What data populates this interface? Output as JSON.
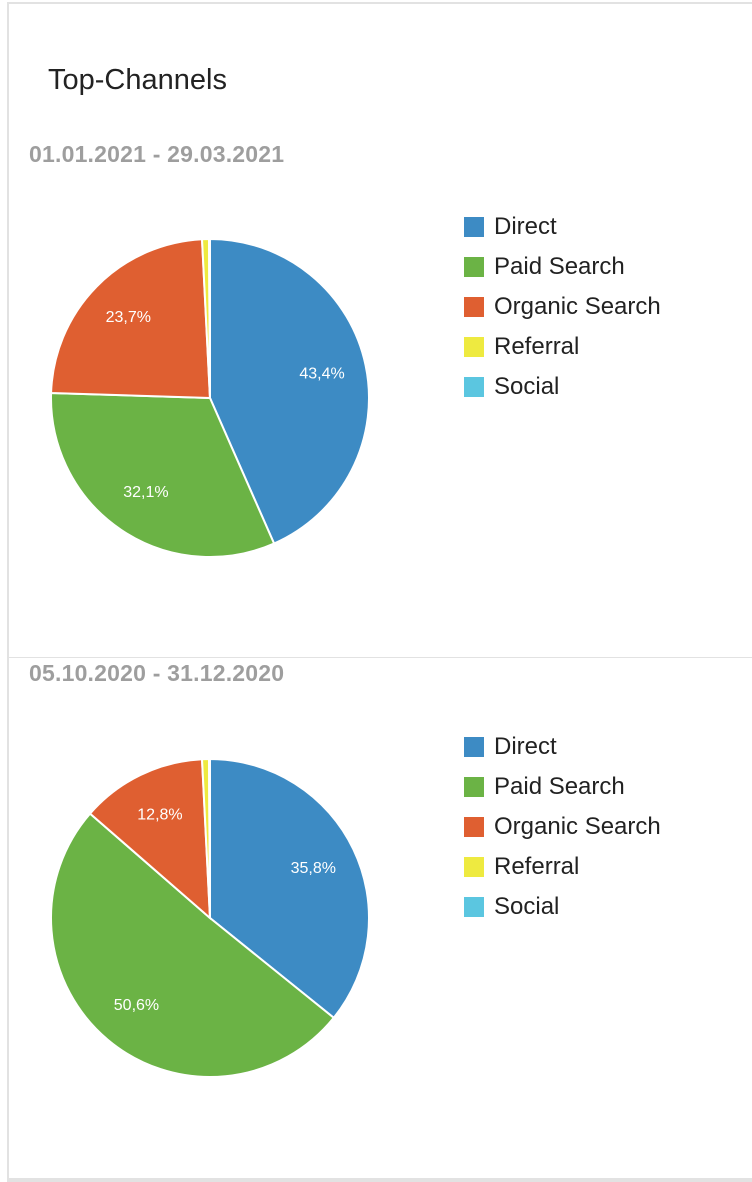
{
  "widget": {
    "title": "Top-Channels"
  },
  "chart_data": [
    {
      "type": "pie",
      "subtitle": "01.01.2021 - 29.03.2021",
      "categories": [
        "Direct",
        "Paid Search",
        "Organic Search",
        "Referral",
        "Social"
      ],
      "values": [
        43.4,
        32.1,
        23.7,
        0.7,
        0.1
      ],
      "data_labels": [
        "43,4%",
        "32,1%",
        "23,7%",
        "",
        ""
      ],
      "colors": [
        "#3d8bc4",
        "#6bb345",
        "#df5f31",
        "#eeea40",
        "#5bc6e0"
      ],
      "legend_position": "right"
    },
    {
      "type": "pie",
      "subtitle": "05.10.2020 - 31.12.2020",
      "categories": [
        "Direct",
        "Paid Search",
        "Organic Search",
        "Referral",
        "Social"
      ],
      "values": [
        35.8,
        50.6,
        12.8,
        0.7,
        0.1
      ],
      "data_labels": [
        "35,8%",
        "50,6%",
        "12,8%",
        "",
        ""
      ],
      "colors": [
        "#3d8bc4",
        "#6bb345",
        "#df5f31",
        "#eeea40",
        "#5bc6e0"
      ],
      "legend_position": "right"
    }
  ]
}
